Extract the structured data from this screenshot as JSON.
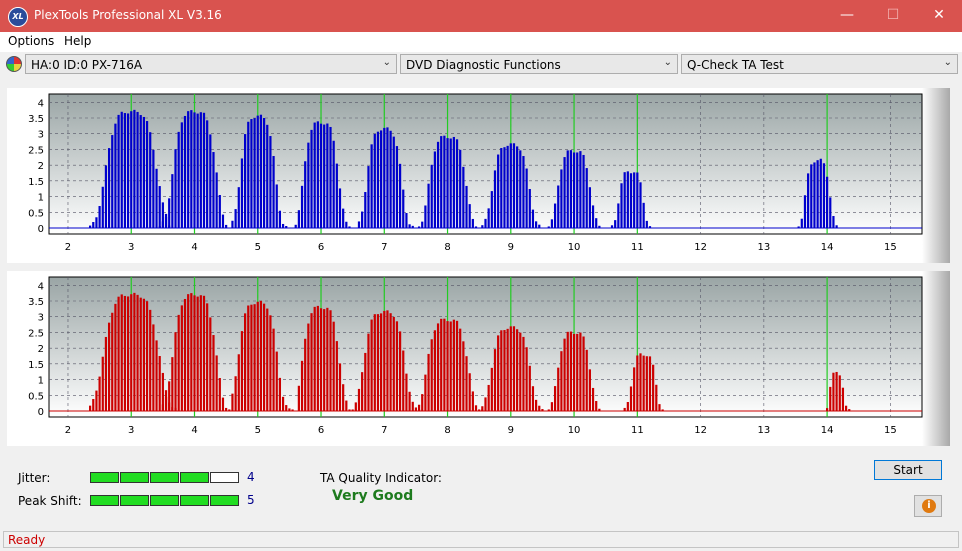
{
  "window": {
    "title": "PlexTools Professional XL V3.16",
    "app_icon_text": "XL"
  },
  "menu": [
    "Options",
    "Help"
  ],
  "toolbar": {
    "drive": "HA:0 ID:0  PX-716A",
    "function": "DVD Diagnostic Functions",
    "test": "Q-Check TA Test"
  },
  "chart_data": [
    {
      "type": "bar",
      "name": "upper-chart",
      "color": "#0000cc",
      "x_ticks": [
        "2",
        "3",
        "4",
        "5",
        "6",
        "7",
        "8",
        "9",
        "10",
        "11",
        "12",
        "13",
        "14",
        "15"
      ],
      "y_ticks": [
        "4",
        "3.5",
        "3",
        "2.5",
        "2",
        "1.5",
        "1",
        "0.5",
        "0"
      ],
      "xlim": [
        1.7,
        15.5
      ],
      "ylim": [
        0,
        4.2
      ],
      "green_lines": [
        3,
        4,
        5,
        6,
        7,
        8,
        9,
        10,
        11,
        14
      ],
      "peaks": [
        {
          "center": 3.0,
          "amp": 3.7,
          "from": 2.35,
          "to": 3.6
        },
        {
          "center": 4.0,
          "amp": 3.7,
          "from": 3.45,
          "to": 4.5
        },
        {
          "center": 5.0,
          "amp": 3.55,
          "from": 4.6,
          "to": 5.45
        },
        {
          "center": 6.0,
          "amp": 3.35,
          "from": 5.6,
          "to": 6.45
        },
        {
          "center": 7.0,
          "amp": 3.15,
          "from": 6.6,
          "to": 7.45
        },
        {
          "center": 8.0,
          "amp": 2.9,
          "from": 7.55,
          "to": 8.45
        },
        {
          "center": 9.0,
          "amp": 2.65,
          "from": 8.55,
          "to": 9.45
        },
        {
          "center": 10.0,
          "amp": 2.45,
          "from": 9.6,
          "to": 10.4
        },
        {
          "center": 10.9,
          "amp": 1.8,
          "from": 10.6,
          "to": 11.2
        },
        {
          "center": 13.85,
          "amp": 2.15,
          "from": 13.55,
          "to": 14.15
        }
      ]
    },
    {
      "type": "bar",
      "name": "lower-chart",
      "color": "#cc0000",
      "x_ticks": [
        "2",
        "3",
        "4",
        "5",
        "6",
        "7",
        "8",
        "9",
        "10",
        "11",
        "12",
        "13",
        "14",
        "15"
      ],
      "y_ticks": [
        "4",
        "3.5",
        "3",
        "2.5",
        "2",
        "1.5",
        "1",
        "0.5",
        "0"
      ],
      "xlim": [
        1.7,
        15.5
      ],
      "ylim": [
        0,
        4.2
      ],
      "green_lines": [
        3,
        4,
        5,
        6,
        7,
        8,
        9,
        10,
        11,
        14
      ],
      "peaks": [
        {
          "center": 3.0,
          "amp": 3.7,
          "from": 2.35,
          "to": 3.7
        },
        {
          "center": 4.0,
          "amp": 3.7,
          "from": 3.5,
          "to": 4.55
        },
        {
          "center": 5.0,
          "amp": 3.45,
          "from": 4.6,
          "to": 5.55
        },
        {
          "center": 6.0,
          "amp": 3.3,
          "from": 5.65,
          "to": 6.55
        },
        {
          "center": 7.0,
          "amp": 3.15,
          "from": 6.55,
          "to": 7.55
        },
        {
          "center": 8.0,
          "amp": 2.9,
          "from": 7.55,
          "to": 8.55
        },
        {
          "center": 9.0,
          "amp": 2.65,
          "from": 8.55,
          "to": 9.5
        },
        {
          "center": 10.0,
          "amp": 2.5,
          "from": 9.6,
          "to": 10.4
        },
        {
          "center": 11.1,
          "amp": 1.8,
          "from": 10.8,
          "to": 11.4
        },
        {
          "center": 14.15,
          "amp": 1.2,
          "from": 14.0,
          "to": 14.35
        }
      ]
    }
  ],
  "jitter": {
    "label": "Jitter:",
    "value": "4",
    "filled": 4,
    "total": 5
  },
  "peak_shift": {
    "label": "Peak Shift:",
    "value": "5",
    "filled": 5,
    "total": 5
  },
  "ta_quality": {
    "label": "TA Quality Indicator:",
    "value": "Very Good"
  },
  "buttons": {
    "start": "Start",
    "info": "i"
  },
  "status": "Ready"
}
